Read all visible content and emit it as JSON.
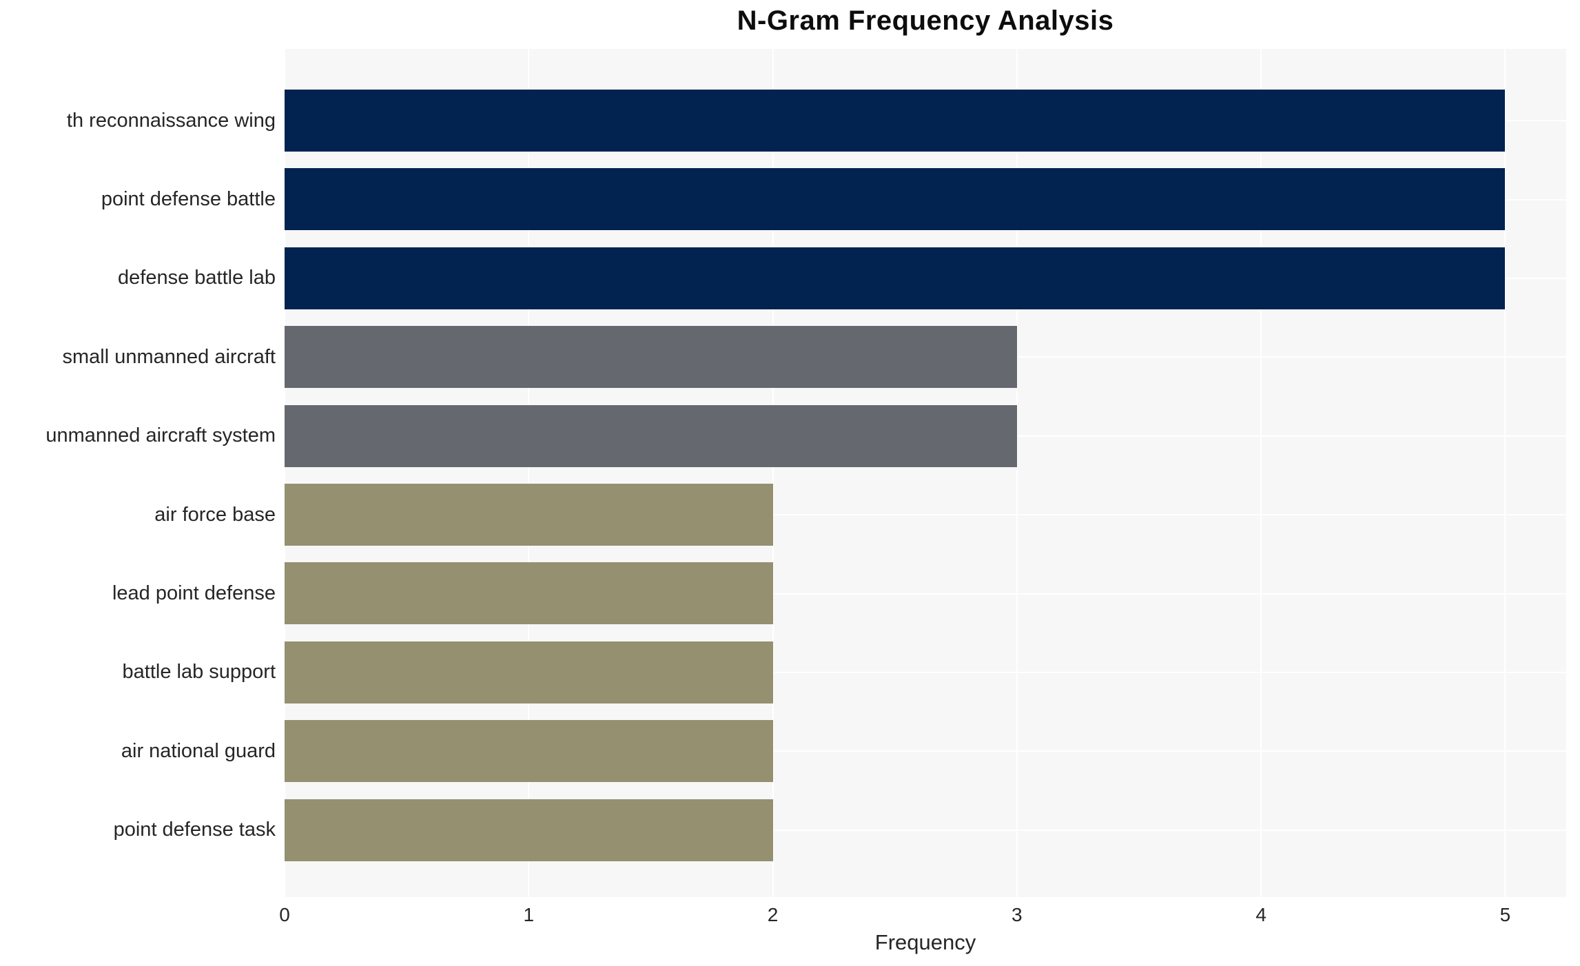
{
  "chart_data": {
    "type": "bar",
    "orientation": "horizontal",
    "title": "N-Gram Frequency Analysis",
    "xlabel": "Frequency",
    "ylabel": "",
    "categories": [
      "th reconnaissance wing",
      "point defense battle",
      "defense battle lab",
      "small unmanned aircraft",
      "unmanned aircraft system",
      "air force base",
      "lead point defense",
      "battle lab support",
      "air national guard",
      "point defense task"
    ],
    "values": [
      5,
      5,
      5,
      3,
      3,
      2,
      2,
      2,
      2,
      2
    ],
    "bar_colors": [
      "#02224F",
      "#02224F",
      "#02224F",
      "#65686F",
      "#65686F",
      "#949070",
      "#949070",
      "#949070",
      "#949070",
      "#949070"
    ],
    "color_legend": {
      "frequency_5": "#02224F",
      "frequency_3": "#65686F",
      "frequency_2": "#949070"
    },
    "xticks": [
      0,
      1,
      2,
      3,
      4,
      5
    ],
    "xlim": [
      0,
      5.25
    ],
    "grid": true,
    "grid_color": "#FFFFFF",
    "plot_background": "#F7F7F8",
    "figure_background": "#FFFFFF",
    "legend_position": "none"
  }
}
